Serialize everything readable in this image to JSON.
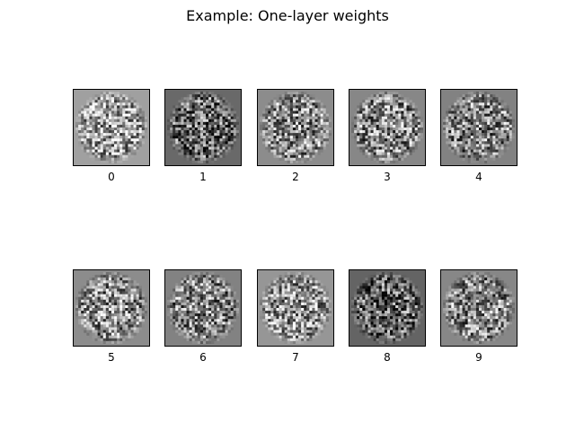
{
  "figure": {
    "title": "Example: One-layer weights"
  },
  "chart_data": {
    "type": "heatmap",
    "colormap": "gray",
    "grid": false,
    "image_resolution": [
      28,
      28
    ],
    "panels": [
      {
        "label": "0",
        "background_gray": 160
      },
      {
        "label": "1",
        "background_gray": 105
      },
      {
        "label": "2",
        "background_gray": 140
      },
      {
        "label": "3",
        "background_gray": 135
      },
      {
        "label": "4",
        "background_gray": 130
      },
      {
        "label": "5",
        "background_gray": 140
      },
      {
        "label": "6",
        "background_gray": 130
      },
      {
        "label": "7",
        "background_gray": 150
      },
      {
        "label": "8",
        "background_gray": 100
      },
      {
        "label": "9",
        "background_gray": 135
      }
    ]
  }
}
